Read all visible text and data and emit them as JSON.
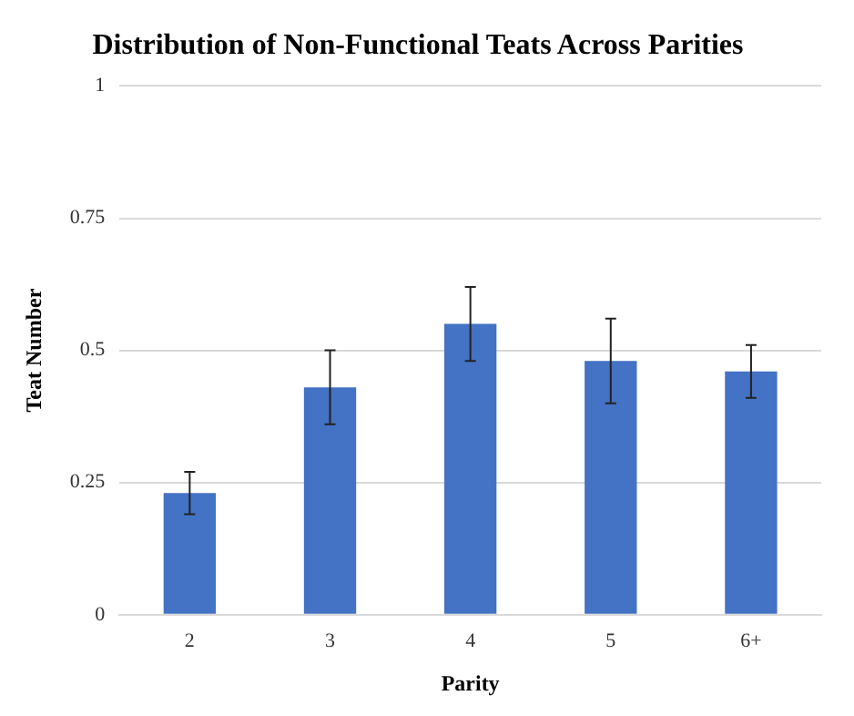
{
  "chart_data": {
    "type": "bar",
    "title": "Distribution of Non-Functional Teats Across Parities",
    "xlabel": "Parity",
    "ylabel": "Teat Number",
    "categories": [
      "2",
      "3",
      "4",
      "5",
      "6+"
    ],
    "values": [
      0.23,
      0.43,
      0.55,
      0.48,
      0.46
    ],
    "errors": [
      0.04,
      0.07,
      0.07,
      0.08,
      0.05
    ],
    "color": "#4472c4",
    "ylim": [
      0,
      1
    ],
    "yticks": [
      0,
      0.25,
      0.5,
      0.75,
      1
    ],
    "grid": "y",
    "legend": false
  }
}
